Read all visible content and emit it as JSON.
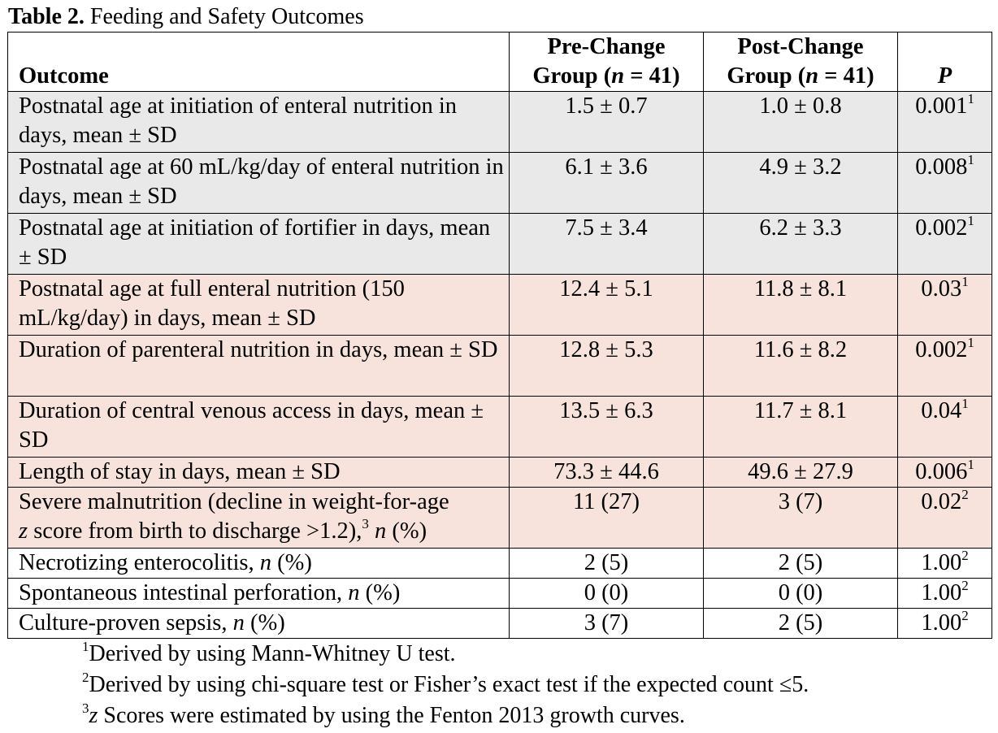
{
  "caption": {
    "label": "Table 2.",
    "text": "Feeding and Safety Outcomes"
  },
  "header": {
    "outcome": "Outcome",
    "pre_line1": "Pre-Change",
    "pre_line2a": "Group (",
    "pre_n": "n",
    "pre_line2b": " = 41)",
    "post_line1": "Post-Change",
    "post_line2a": "Group (",
    "post_n": "n",
    "post_line2b": " = 41)",
    "p": "P"
  },
  "rows": [
    {
      "outcome": "Postnatal age at initiation of enteral nutrition in days, mean ± SD",
      "pre": "1.5 ± 0.7",
      "post": "1.0 ± 0.8",
      "p": "0.001",
      "sup": "1"
    },
    {
      "outcome": "Postnatal age at 60 mL/kg/day of enteral nutrition in days, mean ± SD",
      "pre": "6.1 ± 3.6",
      "post": "4.9 ± 3.2",
      "p": "0.008",
      "sup": "1"
    },
    {
      "outcome": "Postnatal age at initiation of fortifier in days, mean ± SD",
      "pre": "7.5 ± 3.4",
      "post": "6.2 ± 3.3",
      "p": "0.002",
      "sup": "1"
    },
    {
      "outcome": "Postnatal age at full enteral nutrition (150 mL/kg/day) in days, mean ± SD",
      "pre": "12.4 ± 5.1",
      "post": "11.8 ± 8.1",
      "p": "0.03",
      "sup": "1"
    },
    {
      "outcome": "Duration of parenteral nutrition in days, mean ± SD",
      "pre": "12.8 ± 5.3",
      "post": "11.6 ± 8.2",
      "p": "0.002",
      "sup": "1"
    },
    {
      "outcome": "Duration of central venous access in days, mean ± SD",
      "pre": "13.5 ± 6.3",
      "post": "11.7 ± 8.1",
      "p": "0.04",
      "sup": "1"
    },
    {
      "outcome": "Length of stay in days, mean ± SD",
      "pre": "73.3 ± 44.6",
      "post": "49.6 ± 27.9",
      "p": "0.006",
      "sup": "1"
    },
    {
      "outcome_a": "Severe malnutrition (decline in weight-for-age",
      "outcome_z": "z",
      "outcome_b": " score from birth to discharge >1.2),",
      "outcome_sup": "3",
      "outcome_n": "n",
      "outcome_c": " (%)",
      "pre": "11 (27)",
      "post": "3 (7)",
      "p": "0.02",
      "sup": "2"
    },
    {
      "outcome_a": "Necrotizing enterocolitis, ",
      "outcome_n": "n",
      "outcome_c": " (%)",
      "pre": "2 (5)",
      "post": "2 (5)",
      "p": "1.00",
      "sup": "2"
    },
    {
      "outcome_a": "Spontaneous intestinal perforation, ",
      "outcome_n": "n",
      "outcome_c": " (%)",
      "pre": "0 (0)",
      "post": "0 (0)",
      "p": "1.00",
      "sup": "2"
    },
    {
      "outcome_a": "Culture-proven sepsis, ",
      "outcome_n": "n",
      "outcome_c": " (%)",
      "pre": "3 (7)",
      "post": "2 (5)",
      "p": "1.00",
      "sup": "2"
    }
  ],
  "footnotes": [
    {
      "sup": "1",
      "text": "Derived by using Mann-Whitney U test."
    },
    {
      "sup": "2",
      "text": "Derived by using chi-square test or Fisher’s exact test if the expected count ≤5."
    },
    {
      "sup": "3",
      "z": "z",
      "text": " Scores were estimated by using the Fenton 2013 growth curves."
    }
  ],
  "colors": {
    "gray_row": "#e9e9ea",
    "peach_row": "#f7e3dc",
    "text": "#000000"
  }
}
